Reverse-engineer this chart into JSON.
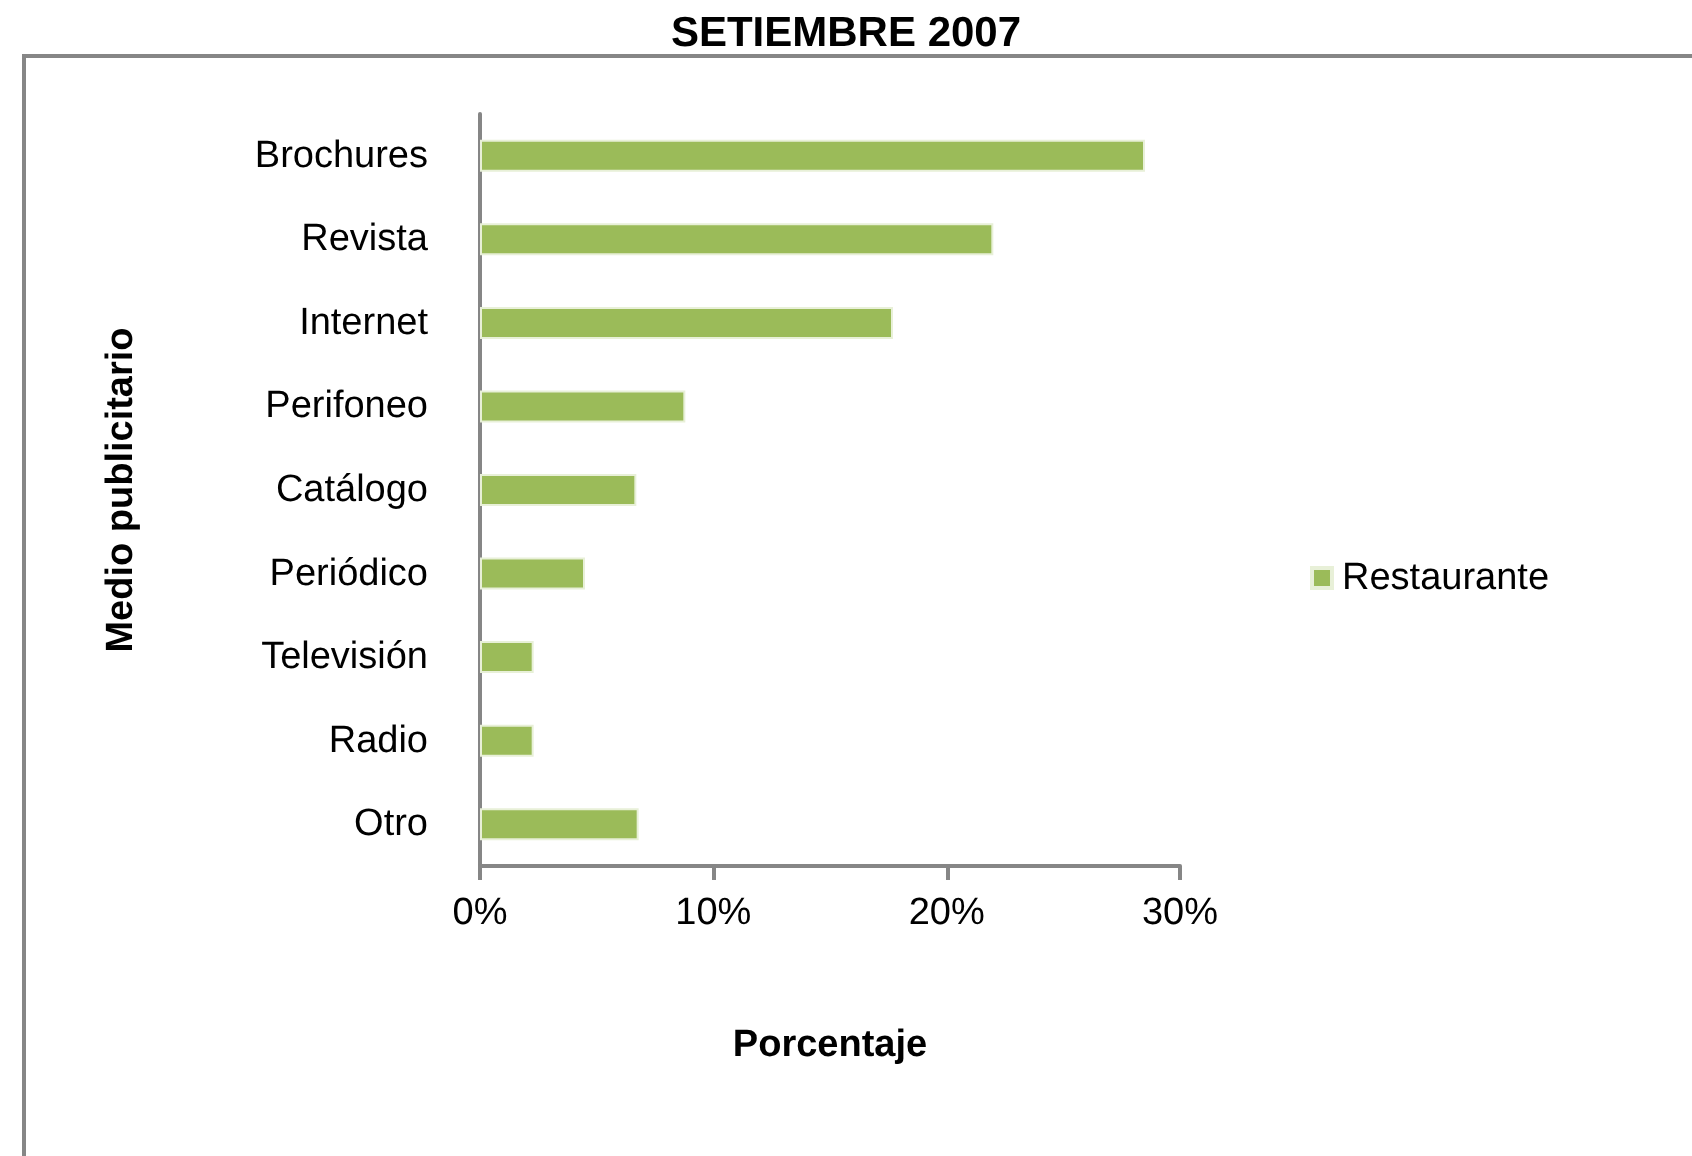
{
  "chart_data": {
    "type": "bar",
    "title": "SETIEMBRE 2007",
    "xlabel": "Porcentaje",
    "ylabel": "Medio publicitario",
    "orientation": "horizontal",
    "categories": [
      "Brochures",
      "Revista",
      "Internet",
      "Perifoneo",
      "Catálogo",
      "Periódico",
      "Televisión",
      "Radio",
      "Otro"
    ],
    "series": [
      {
        "name": "Restaurante",
        "color": "#9bbb59",
        "values": [
          28.5,
          22.0,
          17.7,
          8.8,
          6.7,
          4.5,
          2.3,
          2.3,
          6.8
        ]
      }
    ],
    "xlim": [
      0,
      30
    ],
    "xticks": [
      {
        "value": 0,
        "label": "0%"
      },
      {
        "value": 10,
        "label": "10%"
      },
      {
        "value": 20,
        "label": "20%"
      },
      {
        "value": 30,
        "label": "30%"
      }
    ],
    "grid": false,
    "legend": "right"
  }
}
